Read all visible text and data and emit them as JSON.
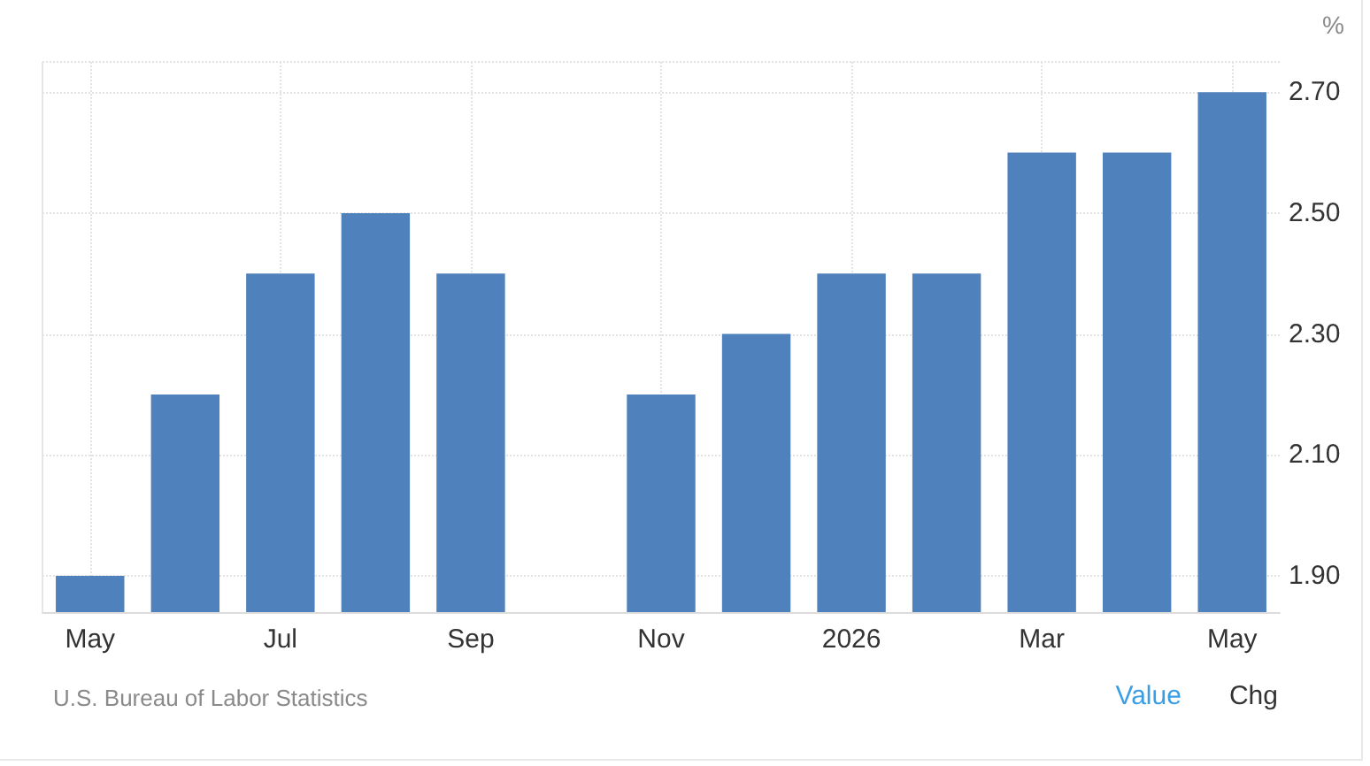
{
  "chart_data": {
    "type": "bar",
    "categories": [
      "May",
      null,
      "Jul",
      null,
      "Sep",
      null,
      "Nov",
      null,
      "2026",
      null,
      "Mar",
      null,
      "May"
    ],
    "values": [
      1.9,
      2.2,
      2.4,
      2.5,
      2.4,
      null,
      2.2,
      2.3,
      2.4,
      2.4,
      2.6,
      2.6,
      2.7
    ],
    "color": "#4f81bd",
    "ylabel": "%",
    "ylim": [
      1.84,
      2.75
    ],
    "yticks": [
      {
        "value": 1.9,
        "label": "1.90"
      },
      {
        "value": 2.1,
        "label": "2.10"
      },
      {
        "value": 2.3,
        "label": "2.30"
      },
      {
        "value": 2.5,
        "label": "2.50"
      },
      {
        "value": 2.7,
        "label": "2.70"
      }
    ],
    "grid": true,
    "annotations": [
      "U.S. Bureau of Labor Statistics",
      "Value",
      "Chg"
    ]
  }
}
